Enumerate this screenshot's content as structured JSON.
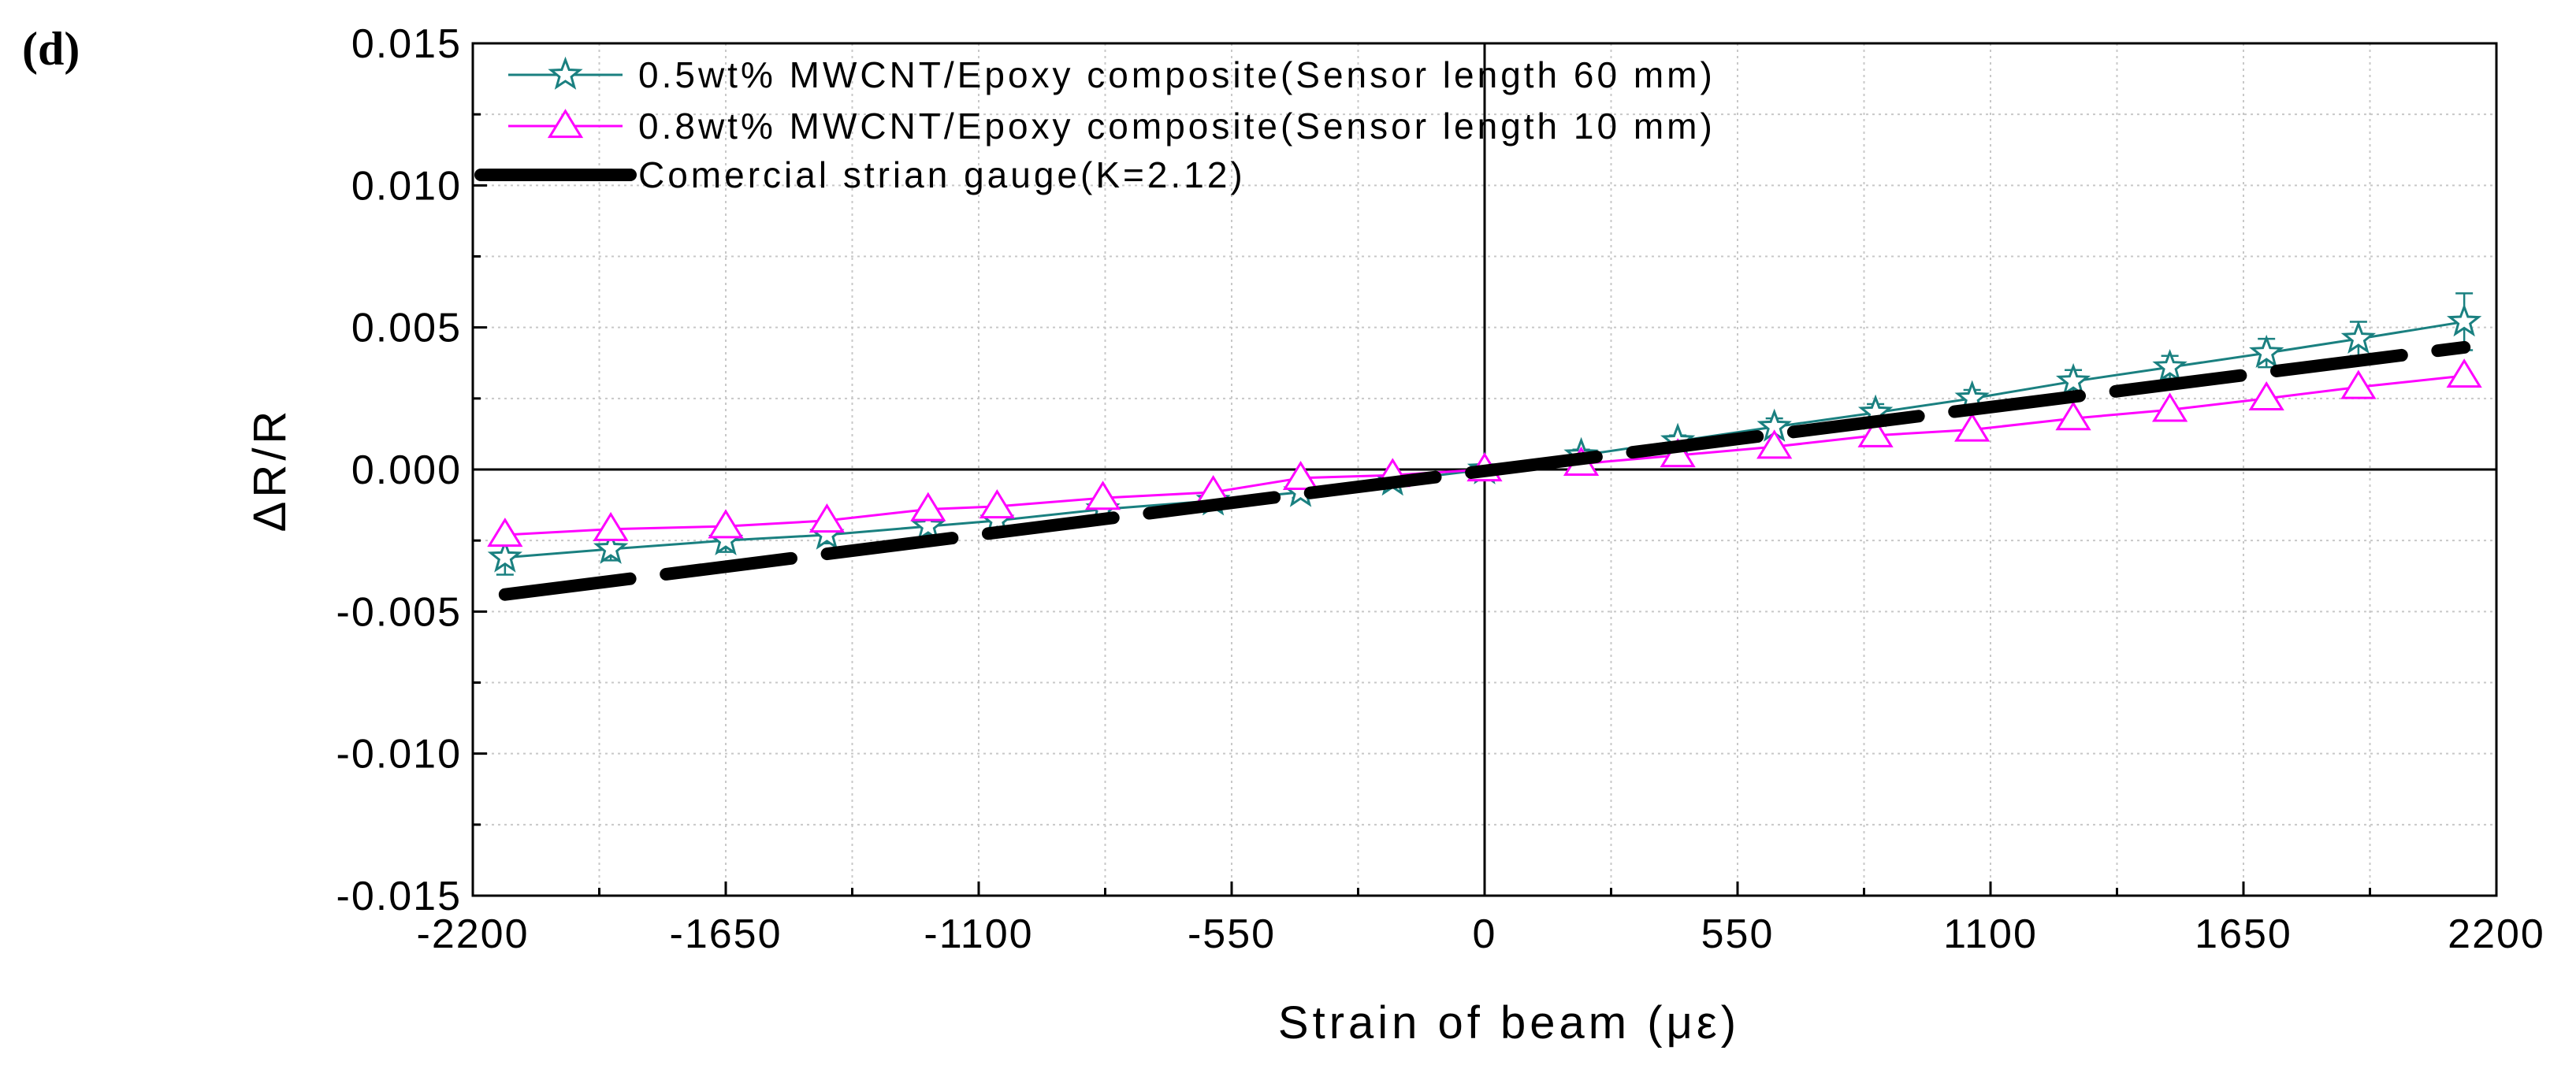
{
  "panel_label": "(d)",
  "chart_data": {
    "type": "line",
    "xlabel": "Strain of beam (με)",
    "ylabel": "ΔR/R",
    "xlim": [
      -2200,
      2200
    ],
    "ylim": [
      -0.015,
      0.015
    ],
    "xticks": [
      -2200,
      -1650,
      -1100,
      -550,
      0,
      550,
      1100,
      1650,
      2200
    ],
    "xtick_labels": [
      "-2200",
      "-1650",
      "-1100",
      "-550",
      "0",
      "550",
      "1100",
      "1650",
      "2200"
    ],
    "yticks": [
      -0.015,
      -0.01,
      -0.005,
      0,
      0.005,
      0.01,
      0.015
    ],
    "ytick_labels": [
      "-0.015",
      "-0.010",
      "-0.005",
      "0.000",
      "0.005",
      "0.010",
      "0.015"
    ],
    "grid": true,
    "legend_position": "top-left",
    "series": [
      {
        "name": "0.5wt% MWCNT/Epoxy composite(Sensor length 60 mm)",
        "color": "#1a8080",
        "marker": "star",
        "x": [
          -2130,
          -1900,
          -1650,
          -1430,
          -1210,
          -1060,
          -830,
          -590,
          -400,
          -200,
          0,
          210,
          420,
          630,
          850,
          1060,
          1280,
          1490,
          1700,
          1900,
          2130
        ],
        "y": [
          -0.0031,
          -0.0028,
          -0.0025,
          -0.0023,
          -0.002,
          -0.0018,
          -0.0014,
          -0.0011,
          -0.0008,
          -0.0004,
          0.0,
          0.0005,
          0.001,
          0.0015,
          0.002,
          0.0025,
          0.0031,
          0.0036,
          0.0041,
          0.0046,
          0.0052
        ],
        "error": [
          0.0006,
          0.0004,
          0.0004,
          0.0003,
          0.0003,
          0.0003,
          0.0003,
          0.0002,
          0.0002,
          0.0002,
          0.0001,
          0.0002,
          0.0002,
          0.0003,
          0.0003,
          0.0003,
          0.0004,
          0.0004,
          0.0005,
          0.0006,
          0.001
        ]
      },
      {
        "name": "0.8wt% MWCNT/Epoxy composite(Sensor length 10 mm)",
        "color": "#ff00ff",
        "marker": "triangle",
        "x": [
          -2130,
          -1900,
          -1650,
          -1430,
          -1210,
          -1060,
          -830,
          -590,
          -400,
          -200,
          0,
          210,
          420,
          630,
          850,
          1060,
          1280,
          1490,
          1700,
          1900,
          2130
        ],
        "y": [
          -0.0023,
          -0.0021,
          -0.002,
          -0.0018,
          -0.0014,
          -0.0013,
          -0.001,
          -0.0008,
          -0.0003,
          -0.0002,
          0.0,
          0.0002,
          0.0005,
          0.0008,
          0.0012,
          0.0014,
          0.0018,
          0.0021,
          0.0025,
          0.0029,
          0.0033
        ]
      },
      {
        "name": "Comercial strian gauge(K=2.12)",
        "color": "#000000",
        "style": "thick-dashed",
        "x": [
          -2130,
          2130
        ],
        "y": [
          -0.0044,
          0.0043
        ]
      }
    ]
  }
}
